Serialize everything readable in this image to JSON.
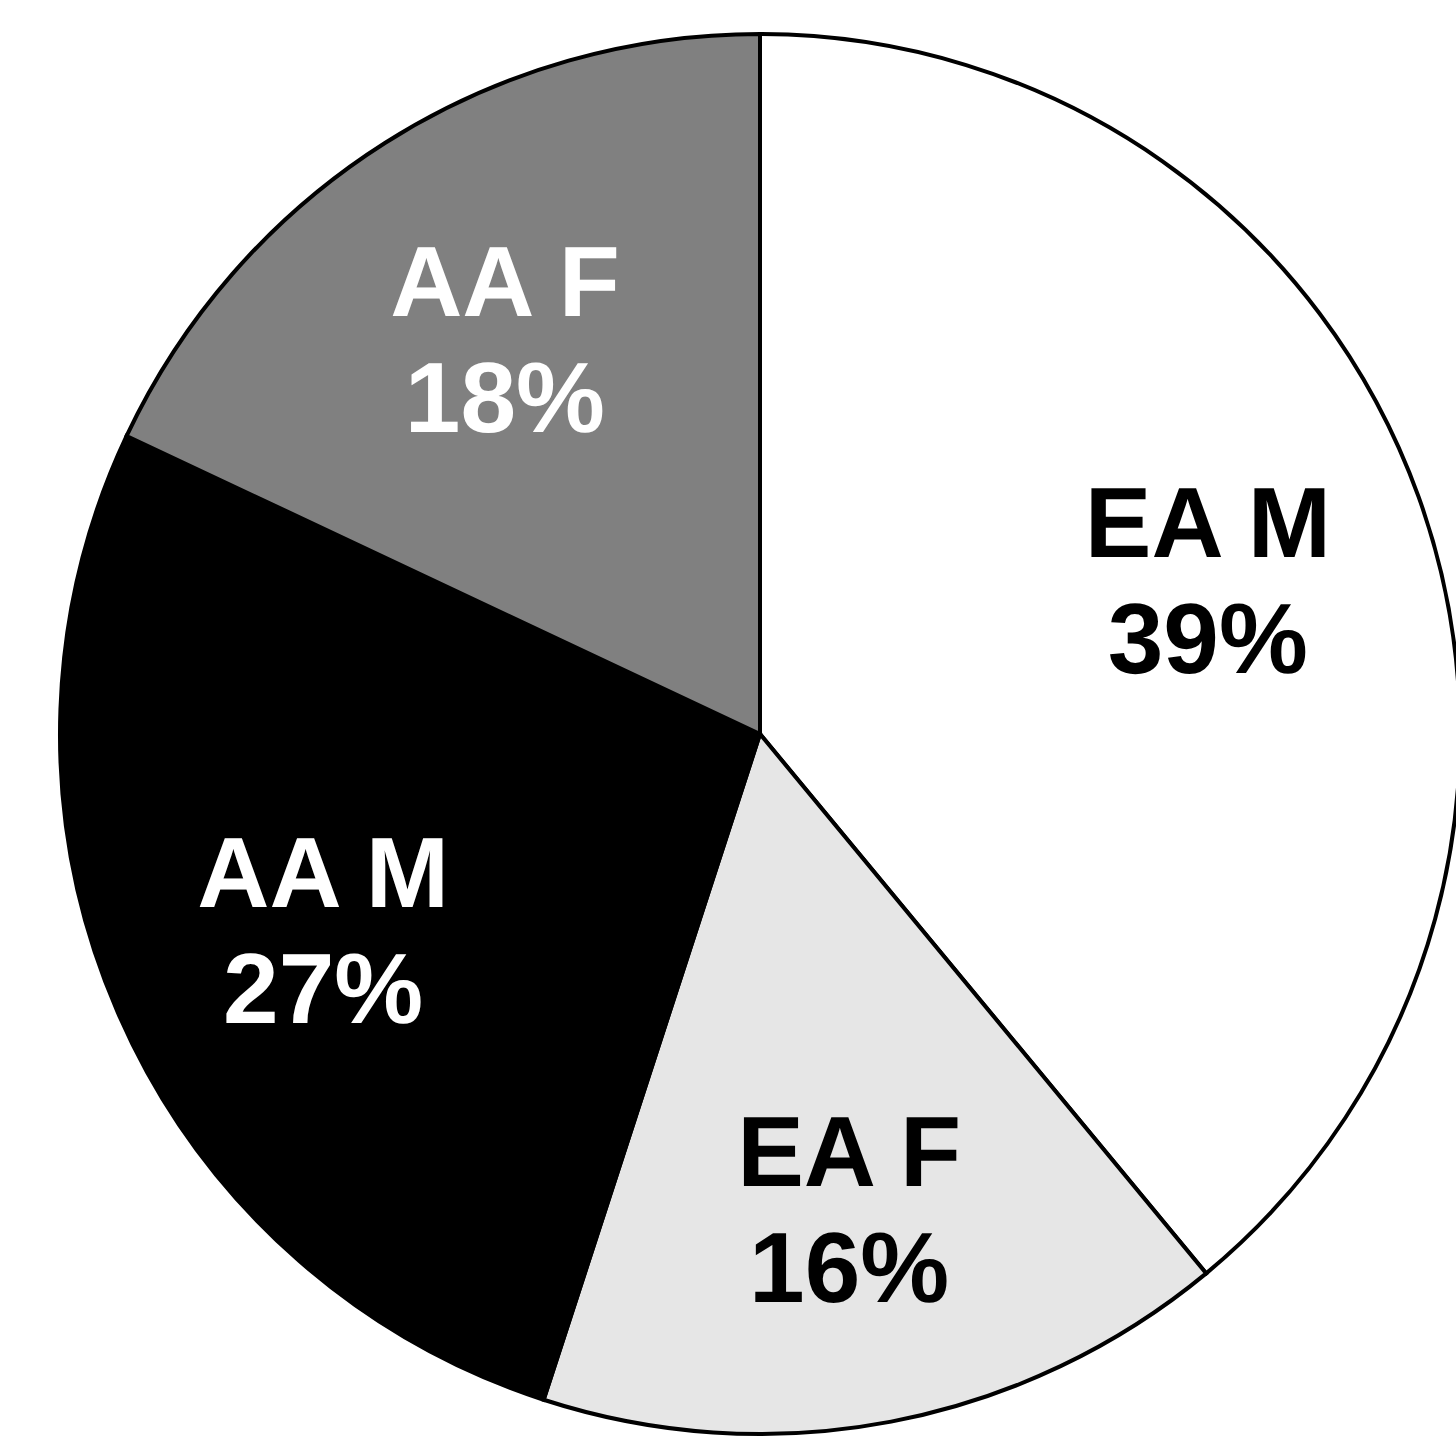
{
  "chart_data": {
    "type": "pie",
    "categories": [
      "EA M",
      "EA F",
      "AA M",
      "AA F"
    ],
    "values": [
      39,
      16,
      27,
      18
    ],
    "colors": [
      "#ffffff",
      "#e6e6e6",
      "#000000",
      "#808080"
    ],
    "value_labels": [
      "39%",
      "16%",
      "27%",
      "18%"
    ],
    "legend": false
  }
}
